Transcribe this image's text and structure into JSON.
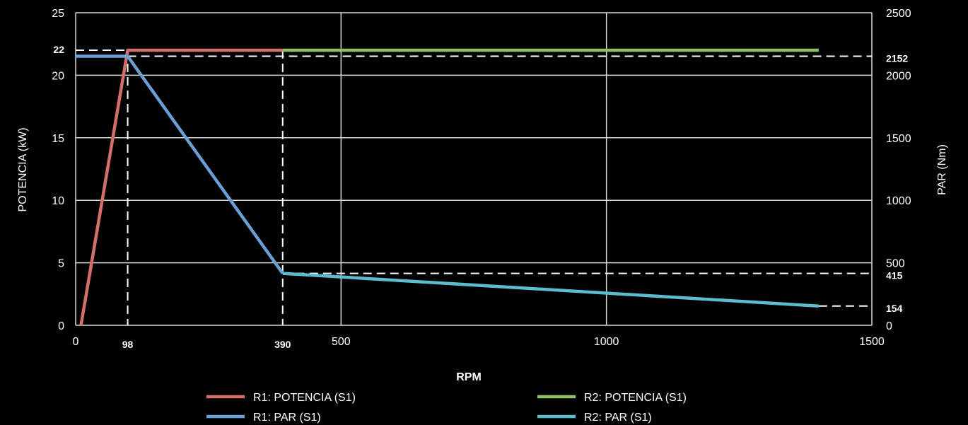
{
  "chart_data": {
    "type": "line",
    "xlabel": "RPM",
    "ylabel_left": "POTENCIA (kW)",
    "ylabel_right": "PAR (Nm)",
    "xlim": [
      0,
      1500
    ],
    "ylim_left": [
      0,
      25
    ],
    "ylim_right": [
      0,
      2500
    ],
    "grid": true,
    "legend_position": "bottom",
    "x_ticks": [
      "0",
      "500",
      "1000",
      "1500"
    ],
    "x_ticks_bold": [
      {
        "label": "98",
        "value": 98
      },
      {
        "label": "390",
        "value": 390
      }
    ],
    "y_left_ticks": [
      "0",
      "5",
      "10",
      "15",
      "20",
      "25"
    ],
    "y_left_ticks_bold": [
      {
        "label": "22",
        "value": 22
      }
    ],
    "y_right_ticks": [
      "0",
      "500",
      "1000",
      "1500",
      "2000",
      "2500"
    ],
    "y_right_ticks_bold": [
      {
        "label": "2152",
        "value": 2152
      },
      {
        "label": "415",
        "value": 415
      },
      {
        "label": "154",
        "value": 154
      }
    ],
    "reference_lines": {
      "vertical_x": [
        98,
        390
      ],
      "left_horizontal_y": [
        22
      ],
      "right_horizontal_y": [
        2152,
        415,
        154
      ]
    },
    "series": [
      {
        "name": "R1: POTENCIA (S1)",
        "axis": "left",
        "color": "#d4706a",
        "points": [
          [
            10,
            0
          ],
          [
            98,
            22
          ],
          [
            390,
            22
          ]
        ]
      },
      {
        "name": "R2: POTENCIA (S1)",
        "axis": "left",
        "color": "#8dc063",
        "points": [
          [
            390,
            22
          ],
          [
            1400,
            22
          ]
        ]
      },
      {
        "name": "R1: PAR (S1)",
        "axis": "right",
        "color": "#6a9fd4",
        "points": [
          [
            0,
            2152
          ],
          [
            98,
            2152
          ],
          [
            390,
            415
          ]
        ]
      },
      {
        "name": "R2: PAR (S1)",
        "axis": "right",
        "color": "#5bbccd",
        "points": [
          [
            390,
            415
          ],
          [
            1400,
            154
          ]
        ]
      }
    ]
  }
}
